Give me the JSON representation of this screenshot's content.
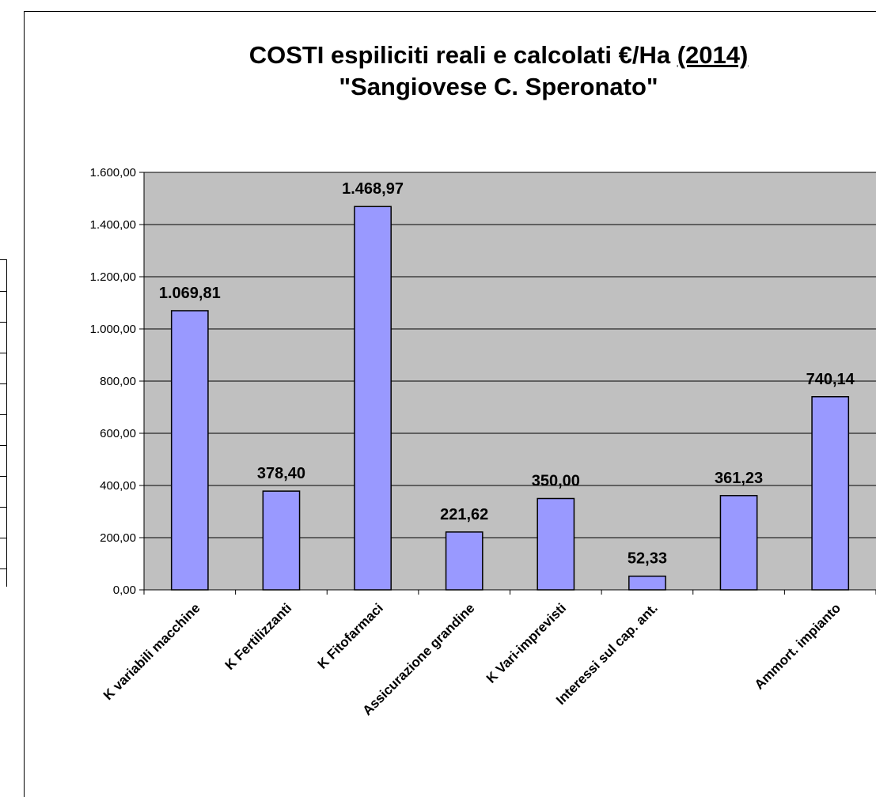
{
  "title": {
    "line1_prefix": "COSTI espiliciti  reali e calcolati €/Ha ",
    "line1_year": "(2014)",
    "line2": "\"Sangiovese C. Speronato\""
  },
  "chart_data": {
    "type": "bar",
    "title": "COSTI espiliciti  reali e calcolati €/Ha (2014) \"Sangiovese C. Speronato\"",
    "categories": [
      "K variabili macchine",
      "K  Fertilizzanti",
      "K Fitofarmaci",
      "Assicurazione grandine",
      "K Vari-imprevisti",
      "Interessi sul cap. ant.",
      "",
      "Ammort. impianto"
    ],
    "values": [
      1069.81,
      378.4,
      1468.97,
      221.62,
      350.0,
      52.33,
      361.23,
      740.14
    ],
    "value_labels": [
      "1.069,81",
      "378,40",
      "1.468,97",
      "221,62",
      "350,00",
      "52,33",
      "361,23",
      "740,14"
    ],
    "yticks": [
      0,
      200,
      400,
      600,
      800,
      1000,
      1200,
      1400,
      1600
    ],
    "ytick_labels": [
      "0,00",
      "200,00",
      "400,00",
      "600,00",
      "800,00",
      "1.000,00",
      "1.200,00",
      "1.400,00",
      "1.600,00"
    ],
    "ylim": [
      0,
      1600
    ],
    "xlabel": "",
    "ylabel": "",
    "grid": true,
    "legend": "none",
    "colors": {
      "bar_fill": "#9999FF",
      "bar_stroke": "#000000",
      "plot_bg": "#C0C0C0",
      "grid": "#000000"
    }
  }
}
